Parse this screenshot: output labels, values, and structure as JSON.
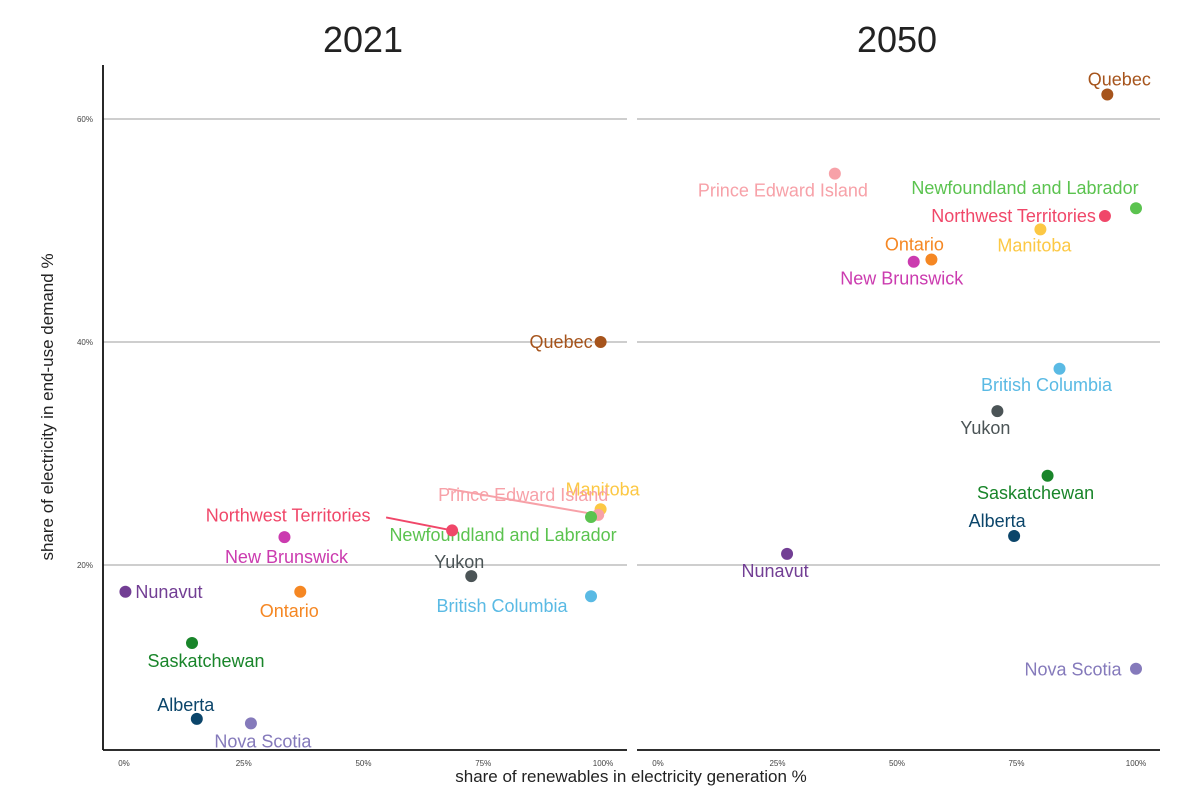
{
  "chart_data": {
    "type": "scatter",
    "xlabel": "share of renewables in electricity generation %",
    "ylabel": "share of electricity in end-use demand %",
    "xlim": [
      0,
      1
    ],
    "ylim": [
      0.04,
      0.65
    ],
    "x_ticks": [
      0,
      0.25,
      0.5,
      0.75,
      1.0
    ],
    "x_tick_labels": [
      "0%",
      "25%",
      "50%",
      "75%",
      "100%"
    ],
    "y_ticks": [
      0.2,
      0.4,
      0.6
    ],
    "y_tick_labels": [
      "20%",
      "40%",
      "60%"
    ],
    "grid": "horizontal major",
    "legend": "none",
    "colors": {
      "Quebec": "#A6541C",
      "Prince Edward Island": "#F7A1A8",
      "Manitoba": "#FCC844",
      "Newfoundland and Labrador": "#5BC34F",
      "Northwest Territories": "#F04769",
      "New Brunswick": "#CB3BAF",
      "Yukon": "#4B5456",
      "British Columbia": "#5ABAE4",
      "Nunavut": "#723E94",
      "Ontario": "#F58723",
      "Saskatchewan": "#19852A",
      "Alberta": "#0B456A",
      "Nova Scotia": "#857ABB"
    },
    "facets": [
      {
        "title": "2021",
        "points": [
          {
            "name": "Quebec",
            "x": 0.995,
            "y": 0.4
          },
          {
            "name": "Manitoba",
            "x": 0.995,
            "y": 0.25
          },
          {
            "name": "Prince Edward Island",
            "x": 0.99,
            "y": 0.245
          },
          {
            "name": "Newfoundland and Labrador",
            "x": 0.975,
            "y": 0.243
          },
          {
            "name": "Northwest Territories",
            "x": 0.685,
            "y": 0.231
          },
          {
            "name": "New Brunswick",
            "x": 0.335,
            "y": 0.225
          },
          {
            "name": "Yukon",
            "x": 0.725,
            "y": 0.19
          },
          {
            "name": "British Columbia",
            "x": 0.975,
            "y": 0.172
          },
          {
            "name": "Nunavut",
            "x": 0.003,
            "y": 0.176
          },
          {
            "name": "Ontario",
            "x": 0.368,
            "y": 0.176
          },
          {
            "name": "Saskatchewan",
            "x": 0.142,
            "y": 0.13
          },
          {
            "name": "Alberta",
            "x": 0.152,
            "y": 0.062
          },
          {
            "name": "Nova Scotia",
            "x": 0.265,
            "y": 0.058
          }
        ]
      },
      {
        "title": "2050",
        "points": [
          {
            "name": "Quebec",
            "x": 0.94,
            "y": 0.622
          },
          {
            "name": "Prince Edward Island",
            "x": 0.37,
            "y": 0.551
          },
          {
            "name": "Newfoundland and Labrador",
            "x": 1.0,
            "y": 0.52
          },
          {
            "name": "Northwest Territories",
            "x": 0.935,
            "y": 0.513
          },
          {
            "name": "Manitoba",
            "x": 0.8,
            "y": 0.501
          },
          {
            "name": "Ontario",
            "x": 0.572,
            "y": 0.474
          },
          {
            "name": "New Brunswick",
            "x": 0.535,
            "y": 0.472
          },
          {
            "name": "British Columbia",
            "x": 0.84,
            "y": 0.376
          },
          {
            "name": "Yukon",
            "x": 0.71,
            "y": 0.338
          },
          {
            "name": "Saskatchewan",
            "x": 0.815,
            "y": 0.28
          },
          {
            "name": "Alberta",
            "x": 0.745,
            "y": 0.226
          },
          {
            "name": "Nunavut",
            "x": 0.27,
            "y": 0.21
          },
          {
            "name": "Nova Scotia",
            "x": 1.0,
            "y": 0.107
          }
        ]
      }
    ]
  }
}
